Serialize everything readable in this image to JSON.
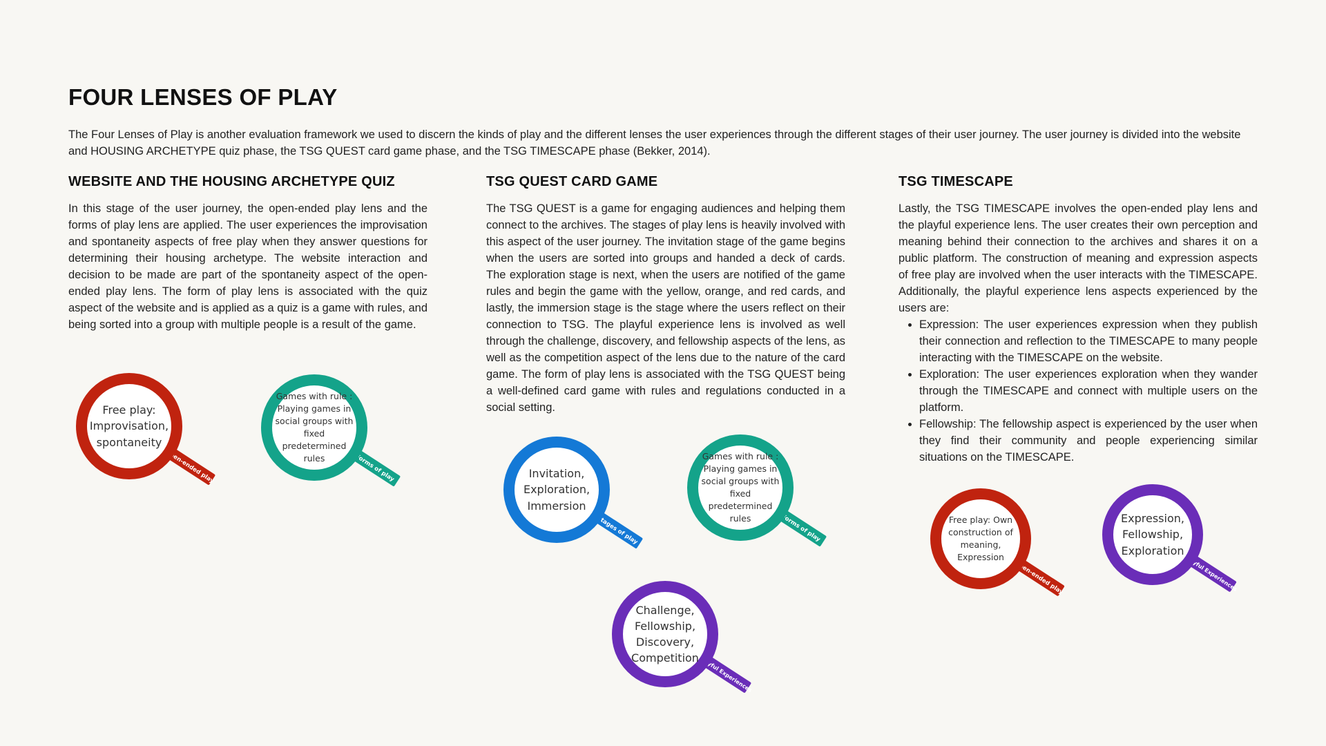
{
  "title": "FOUR LENSES OF PLAY",
  "intro": "The Four Lenses of Play is another evaluation framework we used to discern the kinds of play and the different lenses the user experiences through the different stages of their user journey. The user journey is divided into the website and HOUSING ARCHETYPE quiz phase, the TSG QUEST card game phase, and the TSG TIMESCAPE phase (Bekker, 2014).",
  "columns": {
    "website": {
      "heading": "WEBSITE AND THE HOUSING ARCHETYPE QUIZ",
      "body": "In this stage of the user journey, the open-ended play lens and the forms of play lens are applied. The user experiences the improvisation and spontaneity aspects of free play when they answer questions for determining their housing archetype. The website interaction and decision to be made are part of the spontaneity aspect of the open-ended play lens. The form of play lens is associated with the quiz aspect of the website and is applied as a quiz is a game with rules, and being sorted into a group with multiple people is a result of the game."
    },
    "quest": {
      "heading": "TSG QUEST CARD GAME",
      "body": "The TSG QUEST is a game for engaging audiences and helping them connect to the archives. The stages of play lens is heavily involved with this aspect of the user journey. The invitation stage of the game begins when the users are sorted into groups and handed a deck of cards. The exploration stage is next, when the users are notified of the game rules and begin the game with the yellow, orange, and red cards, and lastly, the immersion stage is the stage where the users reflect on their connection to TSG. The playful experience lens is involved as well through the challenge, discovery, and fellowship aspects of the lens, as well as the competition aspect of the lens due to the nature of the card game. The form of play lens is associated with the TSG QUEST being a well-defined card game with rules and regulations conducted in a social setting."
    },
    "timescape": {
      "heading": "TSG TIMESCAPE",
      "body": "Lastly, the TSG TIMESCAPE involves the open-ended play lens and the playful experience lens. The user creates their own perception and meaning behind their connection to the archives and shares it on a public platform. The construction of meaning and expression aspects of free play are involved when the user interacts with the TIMESCAPE. Additionally, the playful experience lens aspects experienced by the users are:",
      "bullets": [
        "Expression: The user experiences expression when they publish their connection and reflection to the TIMESCAPE to many people interacting with the TIMESCAPE on the website.",
        "Exploration: The user experiences exploration when they wander through the TIMESCAPE and connect with multiple users on the platform.",
        "Fellowship: The fellowship aspect is experienced by the user when they find their community and people experiencing similar situations on the TIMESCAPE."
      ]
    }
  },
  "colors": {
    "red": "#c0230f",
    "teal": "#14a38a",
    "blue": "#1479d6",
    "purple": "#6a2db8"
  },
  "lenses": [
    {
      "text": "Free play:\nImprovisation,\nspontaneity",
      "handle": "Open-ended play",
      "color": "#c0230f",
      "icon": "magnifying-glass"
    },
    {
      "text": "Games with rule :\nPlaying games in\nsocial groups with\nfixed\npredetermined\nrules",
      "handle": "Forms of play",
      "color": "#14a38a",
      "icon": "magnifying-glass"
    },
    {
      "text": "Invitation,\nExploration,\nImmersion",
      "handle": "Stages of play",
      "color": "#1479d6",
      "icon": "magnifying-glass"
    },
    {
      "text": "Games with rule :\nPlaying games in\nsocial groups with\nfixed\npredetermined\nrules",
      "handle": "Forms of play",
      "color": "#14a38a",
      "icon": "magnifying-glass"
    },
    {
      "text": "Challenge,\nFellowship,\nDiscovery,\nCompetition",
      "handle": "Playful Experiences",
      "color": "#6a2db8",
      "icon": "magnifying-glass"
    },
    {
      "text": "Free play: Own\nconstruction of\nmeaning,\nExpression",
      "handle": "Open-ended play",
      "color": "#c0230f",
      "icon": "magnifying-glass"
    },
    {
      "text": "Expression,\nFellowship,\nExploration",
      "handle": "Playful Experiences",
      "color": "#6a2db8",
      "icon": "magnifying-glass"
    }
  ]
}
